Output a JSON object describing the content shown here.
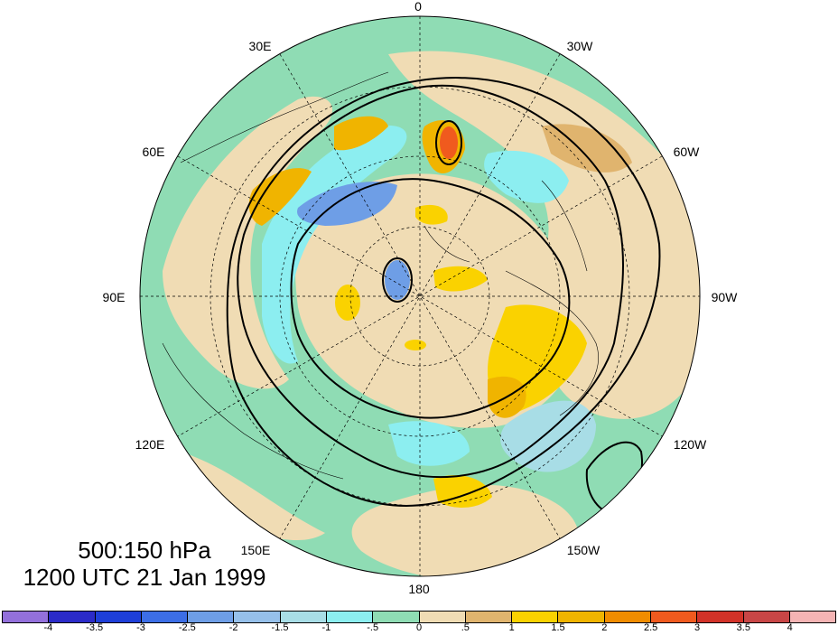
{
  "map": {
    "projection": "north-polar-stereographic",
    "longitude_labels": [
      "0",
      "30W",
      "60W",
      "90W",
      "120W",
      "150W",
      "180",
      "150E",
      "120E",
      "90E",
      "60E",
      "30E"
    ]
  },
  "title": {
    "levels": "500:150 hPa",
    "time": "1200 UTC 21 Jan 1999"
  },
  "colorbar": {
    "tick_labels": [
      "-4",
      "-3.5",
      "-3",
      "-2.5",
      "-2",
      "-1.5",
      "-1",
      "-.5",
      "0",
      ".5",
      "1",
      "1.5",
      "2",
      "2.5",
      "3",
      "3.5",
      "4"
    ],
    "colors": [
      "#9370db",
      "#2b2bc8",
      "#1e3fd8",
      "#3c6ee6",
      "#6e9ee6",
      "#96c0ea",
      "#a8dde6",
      "#8ceef0",
      "#8fdcb4",
      "#f0dcb4",
      "#e0b46e",
      "#fad200",
      "#f0b400",
      "#f08c00",
      "#f05a1e",
      "#d23228",
      "#c84646",
      "#f5b4b4"
    ]
  },
  "colors": {
    "ocean_neutral": "#8fdcb4",
    "land_neutral": "#f0dcb4",
    "positive_weak": "#e0b46e",
    "positive_mid": "#fad200",
    "negative_weak": "#8ceef0",
    "negative_mid": "#6e9ee6"
  }
}
